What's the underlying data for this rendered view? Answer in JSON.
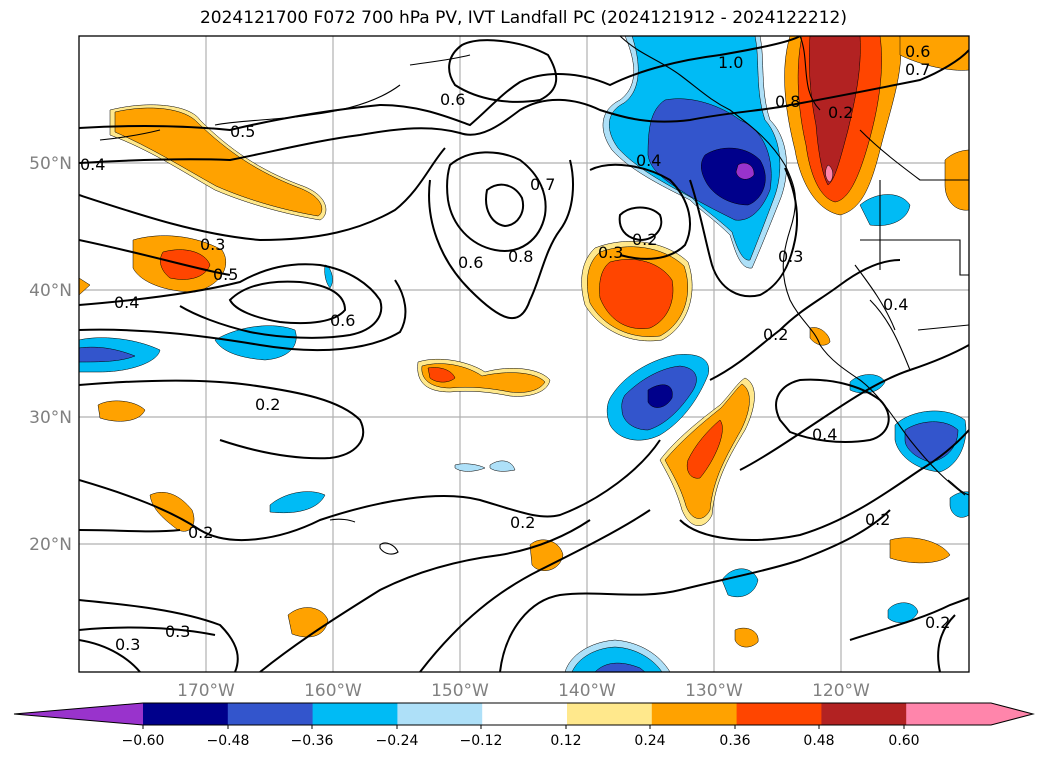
{
  "title": "2024121700 F072 700 hPa PV, IVT Landfall PC (2024121912 - 2024122212)",
  "map": {
    "lon_labels": [
      "170°W",
      "160°W",
      "150°W",
      "140°W",
      "130°W",
      "120°W"
    ],
    "lat_labels": [
      "50°N",
      "40°N",
      "30°N",
      "20°N"
    ]
  },
  "contour_labels": [
    "0.6",
    "1.0",
    "0.6",
    "0.7",
    "0.5",
    "0.8",
    "0.4",
    "0.4",
    "0.7",
    "0.8",
    "0.2",
    "0.3",
    "0.6",
    "0.3",
    "0.5",
    "0.3",
    "0.4",
    "0.6",
    "0.2",
    "0.4",
    "0.4",
    "0.2",
    "0.2",
    "0.2",
    "0.2",
    "0.2",
    "0.3",
    "0.3",
    "0.2"
  ],
  "colorbar": {
    "ticks": [
      "−0.60",
      "−0.48",
      "−0.36",
      "−0.24",
      "−0.12",
      "0.12",
      "0.24",
      "0.36",
      "0.48",
      "0.60"
    ],
    "colors": [
      "#9933cc",
      "#00008b",
      "#3355cc",
      "#00bbf5",
      "#aee0f8",
      "#ffffff",
      "#ffe88c",
      "#ffa200",
      "#ff4500",
      "#b22222",
      "#ff85ab",
      "#ff85ab"
    ]
  }
}
